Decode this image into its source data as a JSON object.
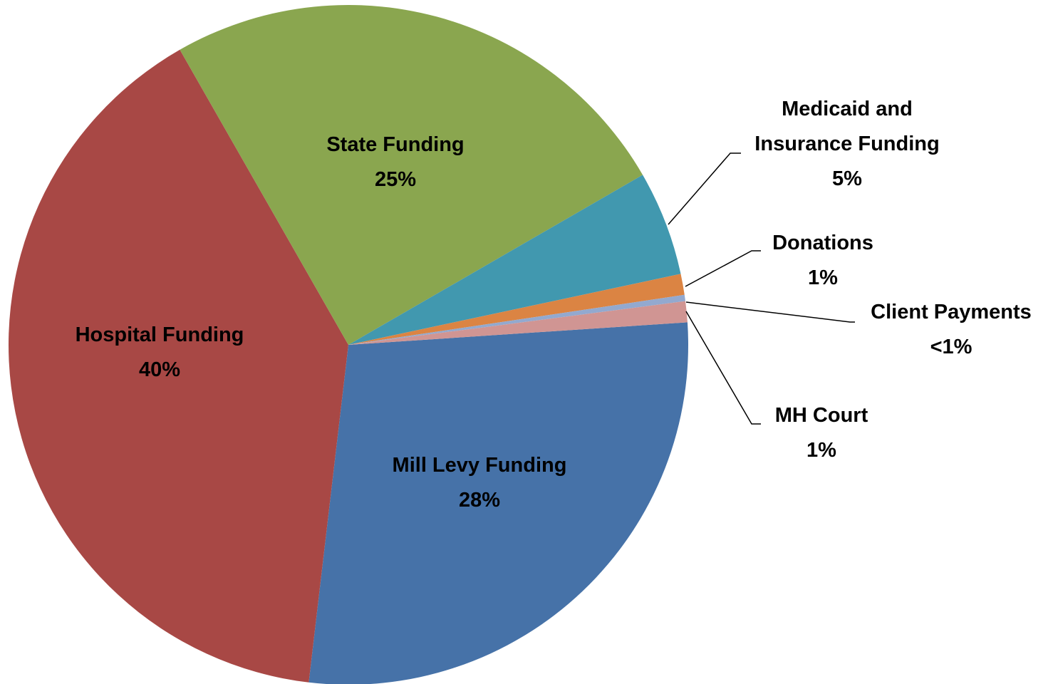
{
  "chart_data": {
    "type": "pie",
    "categories": [
      "Mill Levy Funding",
      "Hospital Funding",
      "State Funding",
      "Medicaid and Insurance Funding",
      "Donations",
      "Client Payments",
      "MH Court"
    ],
    "values": [
      28,
      40,
      25,
      5,
      1,
      0.3,
      1
    ],
    "value_labels": [
      "28%",
      "40%",
      "25%",
      "5%",
      "1%",
      "<1%",
      "1%"
    ],
    "colors": [
      "#4672a8",
      "#a84845",
      "#8aa64f",
      "#4198af",
      "#db8443",
      "#93a9cf",
      "#d09593"
    ]
  }
}
